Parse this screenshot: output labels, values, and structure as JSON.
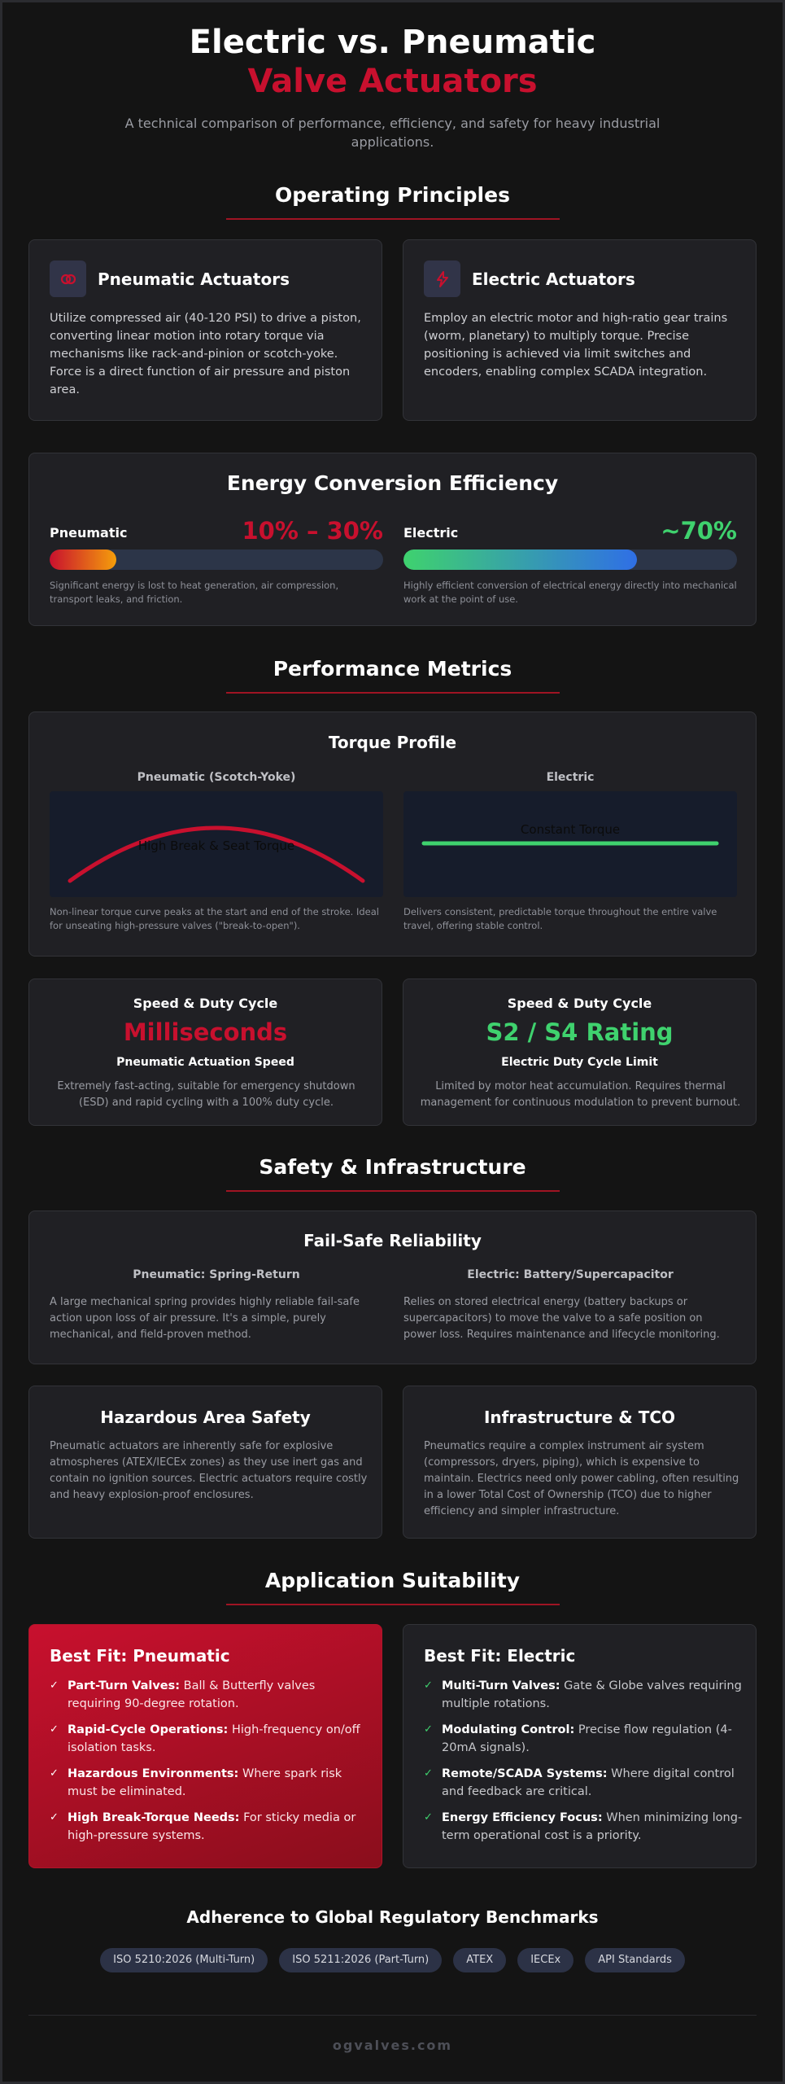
{
  "header": {
    "title_line1": "Electric vs. Pneumatic",
    "title_line2": "Valve Actuators",
    "subtitle": "A technical comparison of performance, efficiency, and safety for heavy industrial applications."
  },
  "sections": {
    "principles": "Operating Principles",
    "performance": "Performance Metrics",
    "safety": "Safety & Infrastructure",
    "suitability": "Application Suitability"
  },
  "principles": {
    "pneumatic": {
      "title": "Pneumatic Actuators",
      "icon": "link-icon",
      "text": "Utilize compressed air (40-120 PSI) to drive a piston, converting linear motion into rotary torque via mechanisms like rack-and-pinion or scotch-yoke. Force is a direct function of air pressure and piston area."
    },
    "electric": {
      "title": "Electric Actuators",
      "icon": "lightning-icon",
      "text": "Employ an electric motor and high-ratio gear trains (worm, planetary) to multiply torque. Precise positioning is achieved via limit switches and encoders, enabling complex SCADA integration."
    }
  },
  "efficiency": {
    "title": "Energy Conversion Efficiency",
    "pneumatic": {
      "label": "Pneumatic",
      "value": "10% – 30%",
      "fill_fraction": 0.2,
      "note": "Significant energy is lost to heat generation, air compression, transport leaks, and friction."
    },
    "electric": {
      "label": "Electric",
      "value": "~70%",
      "fill_fraction": 0.7,
      "note": "Highly efficient conversion of electrical energy directly into mechanical work at the point of use."
    }
  },
  "torque": {
    "title": "Torque Profile",
    "pneumatic": {
      "label": "Pneumatic (Scotch-Yoke)",
      "curve_label": "High Break & Seat Torque",
      "note": "Non-linear torque curve peaks at the start and end of the stroke. Ideal for unseating high-pressure valves (\"break-to-open\")."
    },
    "electric": {
      "label": "Electric",
      "curve_label": "Constant Torque",
      "note": "Delivers consistent, predictable torque throughout the entire valve travel, offering stable control."
    }
  },
  "speed": {
    "pneumatic": {
      "kicker": "Speed & Duty Cycle",
      "value": "Milliseconds",
      "label": "Pneumatic Actuation Speed",
      "text": "Extremely fast-acting, suitable for emergency shutdown (ESD) and rapid cycling with a 100% duty cycle."
    },
    "electric": {
      "kicker": "Speed & Duty Cycle",
      "value": "S2 / S4 Rating",
      "label": "Electric Duty Cycle Limit",
      "text": "Limited by motor heat accumulation. Requires thermal management for continuous modulation to prevent burnout."
    }
  },
  "failsafe": {
    "title": "Fail-Safe Reliability",
    "pneumatic": {
      "label": "Pneumatic: Spring-Return",
      "text": "A large mechanical spring provides highly reliable fail-safe action upon loss of air pressure. It's a simple, purely mechanical, and field-proven method."
    },
    "electric": {
      "label": "Electric: Battery/Supercapacitor",
      "text": "Relies on stored electrical energy (battery backups or supercapacitors) to move the valve to a safe position on power loss. Requires maintenance and lifecycle monitoring."
    }
  },
  "hazard": {
    "title": "Hazardous Area Safety",
    "text": "Pneumatic actuators are inherently safe for explosive atmospheres (ATEX/IECEx zones) as they use inert gas and contain no ignition sources. Electric actuators require costly and heavy explosion-proof enclosures."
  },
  "tco": {
    "title": "Infrastructure & TCO",
    "text": "Pneumatics require a complex instrument air system (compressors, dryers, piping), which is expensive to maintain. Electrics need only power cabling, often resulting in a lower Total Cost of Ownership (TCO) due to higher efficiency and simpler infrastructure."
  },
  "fit": {
    "pneumatic": {
      "title": "Best Fit: Pneumatic",
      "items": [
        {
          "bold": "Part-Turn Valves:",
          "text": " Ball & Butterfly valves requiring 90-degree rotation."
        },
        {
          "bold": "Rapid-Cycle Operations:",
          "text": " High-frequency on/off isolation tasks."
        },
        {
          "bold": "Hazardous Environments:",
          "text": " Where spark risk must be eliminated."
        },
        {
          "bold": "High Break-Torque Needs:",
          "text": " For sticky media or high-pressure systems."
        }
      ]
    },
    "electric": {
      "title": "Best Fit: Electric",
      "items": [
        {
          "bold": "Multi-Turn Valves:",
          "text": " Gate & Globe valves requiring multiple rotations."
        },
        {
          "bold": "Modulating Control:",
          "text": " Precise flow regulation (4-20mA signals)."
        },
        {
          "bold": "Remote/SCADA Systems:",
          "text": " Where digital control and feedback are critical."
        },
        {
          "bold": "Energy Efficiency Focus:",
          "text": " When minimizing long-term operational cost is a priority."
        }
      ]
    },
    "check_glyph": "✓"
  },
  "standards": {
    "title": "Adherence to Global Regulatory Benchmarks",
    "pills": [
      "ISO 5210:2026 (Multi-Turn)",
      "ISO 5211:2026 (Part-Turn)",
      "ATEX",
      "IECEx",
      "API Standards"
    ]
  },
  "footer": {
    "brand": "ogvalves.com"
  },
  "colors": {
    "accent_red": "#c8102e",
    "accent_green": "#3fd26e",
    "electric_blue": "#2f6fe6",
    "background": "#141414",
    "card": "#202024"
  }
}
